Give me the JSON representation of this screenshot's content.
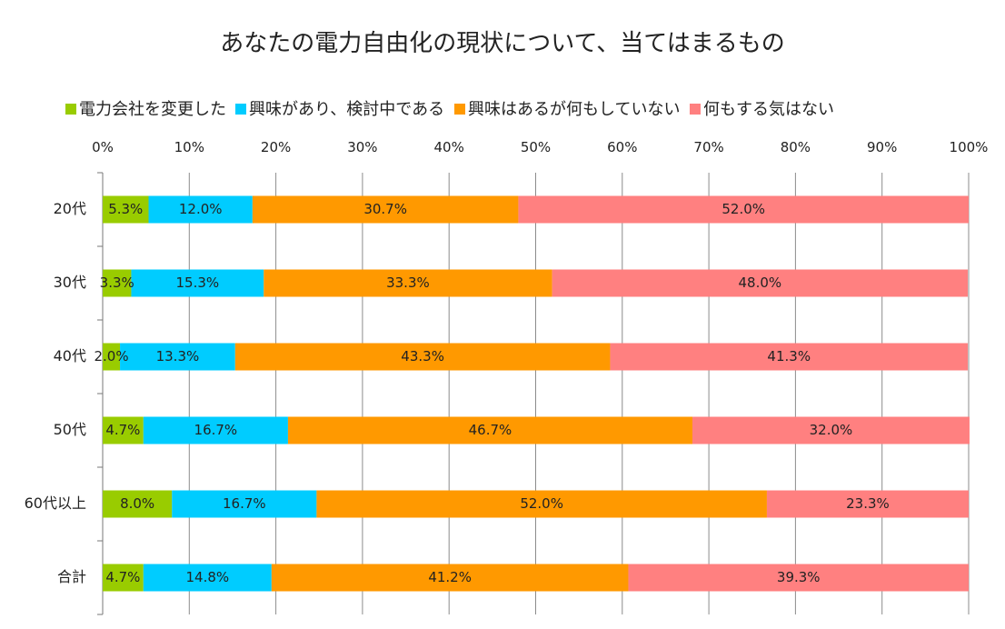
{
  "chart_data": {
    "type": "bar",
    "orientation": "horizontal",
    "stacked": true,
    "title": "あなたの電力自由化の現状について、当てはまるもの",
    "xlim": [
      0,
      100
    ],
    "x_ticks": [
      "0%",
      "10%",
      "20%",
      "30%",
      "40%",
      "50%",
      "60%",
      "70%",
      "80%",
      "90%",
      "100%"
    ],
    "categories": [
      "20代",
      "30代",
      "40代",
      "50代",
      "60代以上",
      "合計"
    ],
    "legend_position": "top",
    "grid": true,
    "series": [
      {
        "name": "電力会社を変更した",
        "color": "#99cc00",
        "values": [
          5.3,
          3.3,
          2.0,
          4.7,
          8.0,
          4.7
        ],
        "labels": [
          "5.3%",
          "3.3%",
          "2.0%",
          "4.7%",
          "8.0%",
          "4.7%"
        ]
      },
      {
        "name": "興味があり、検討中である",
        "color": "#00ccff",
        "values": [
          12.0,
          15.3,
          13.3,
          16.7,
          16.7,
          14.8
        ],
        "labels": [
          "12.0%",
          "15.3%",
          "13.3%",
          "16.7%",
          "16.7%",
          "14.8%"
        ]
      },
      {
        "name": "興味はあるが何もしていない",
        "color": "#ff9900",
        "values": [
          30.7,
          33.3,
          43.3,
          46.7,
          52.0,
          41.2
        ],
        "labels": [
          "30.7%",
          "33.3%",
          "43.3%",
          "46.7%",
          "52.0%",
          "41.2%"
        ]
      },
      {
        "name": "何もする気はない",
        "color": "#ff8080",
        "values": [
          52.0,
          48.0,
          41.3,
          32.0,
          23.3,
          39.3
        ],
        "labels": [
          "52.0%",
          "48.0%",
          "41.3%",
          "32.0%",
          "23.3%",
          "39.3%"
        ]
      }
    ]
  }
}
